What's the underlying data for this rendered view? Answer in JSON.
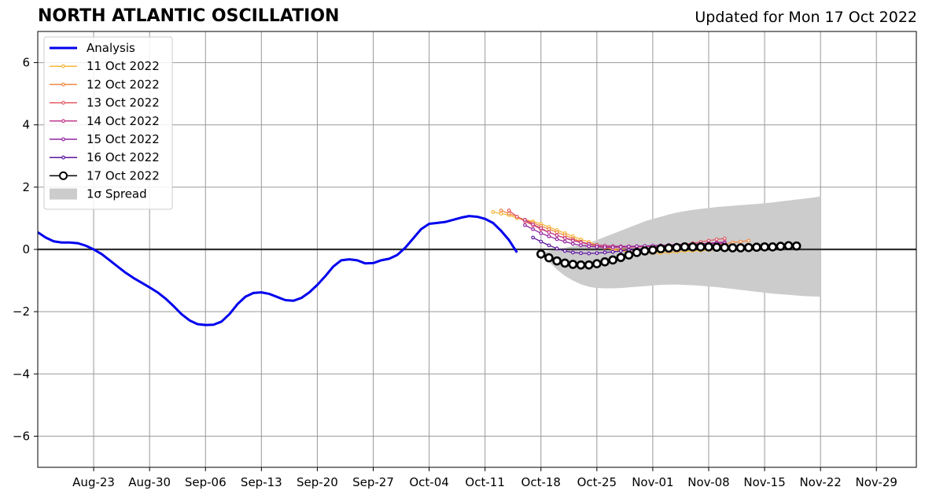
{
  "header": {
    "title": "NORTH ATLANTIC OSCILLATION",
    "updated": "Updated for Mon 17 Oct 2022"
  },
  "chart_data": {
    "type": "line",
    "x_axis": {
      "type": "date",
      "range": [
        "2022-08-16",
        "2022-12-04"
      ],
      "tick_dates": [
        "2022-08-23",
        "2022-08-30",
        "2022-09-06",
        "2022-09-13",
        "2022-09-20",
        "2022-09-27",
        "2022-10-04",
        "2022-10-11",
        "2022-10-18",
        "2022-10-25",
        "2022-11-01",
        "2022-11-08",
        "2022-11-15",
        "2022-11-22",
        "2022-11-29"
      ],
      "tick_labels": [
        "Aug-23",
        "Aug-30",
        "Sep-06",
        "Sep-13",
        "Sep-20",
        "Sep-27",
        "Oct-04",
        "Oct-11",
        "Oct-18",
        "Oct-25",
        "Nov-01",
        "Nov-08",
        "Nov-15",
        "Nov-22",
        "Nov-29"
      ]
    },
    "y_axis": {
      "range": [
        -7,
        7
      ],
      "ticks": [
        6,
        4,
        2,
        0,
        -2,
        -4,
        -6
      ],
      "tick_labels": [
        "6",
        "4",
        "2",
        "0",
        "−2",
        "−4",
        "−6"
      ]
    },
    "grid": true,
    "legend": {
      "placement": "upper-left",
      "entries": [
        "Analysis",
        "11 Oct 2022",
        "12 Oct 2022",
        "13 Oct 2022",
        "14 Oct 2022",
        "15 Oct 2022",
        "16 Oct 2022",
        "17 Oct 2022",
        "1σ Spread"
      ]
    },
    "analysis": {
      "name": "Analysis",
      "color": "#0000ee",
      "start_date": "2022-08-16",
      "values": [
        0.55,
        0.38,
        0.26,
        0.22,
        0.22,
        0.2,
        0.12,
        0.0,
        -0.15,
        -0.35,
        -0.55,
        -0.75,
        -0.92,
        -1.07,
        -1.22,
        -1.38,
        -1.58,
        -1.82,
        -2.08,
        -2.28,
        -2.4,
        -2.43,
        -2.42,
        -2.32,
        -2.08,
        -1.76,
        -1.52,
        -1.4,
        -1.38,
        -1.43,
        -1.53,
        -1.63,
        -1.65,
        -1.56,
        -1.38,
        -1.14,
        -0.86,
        -0.55,
        -0.35,
        -0.32,
        -0.35,
        -0.45,
        -0.44,
        -0.35,
        -0.3,
        -0.18,
        0.05,
        0.35,
        0.65,
        0.82,
        0.85,
        0.88,
        0.95,
        1.02,
        1.07,
        1.05,
        0.98,
        0.85,
        0.6,
        0.3,
        -0.1
      ]
    },
    "forecasts": [
      {
        "name": "11 Oct 2022",
        "color": "#f6b73c",
        "start_date": "2022-10-12",
        "values": [
          1.2,
          1.15,
          1.1,
          1.0,
          0.95,
          0.9,
          0.82,
          0.72,
          0.62,
          0.52,
          0.42,
          0.32,
          0.24,
          0.15,
          0.07,
          0.0,
          -0.05,
          -0.08,
          -0.1,
          -0.1,
          -0.12,
          -0.12,
          -0.1,
          -0.08,
          -0.06,
          -0.05,
          -0.04,
          -0.02,
          0.0,
          0.02,
          0.05,
          0.08,
          0.12
        ]
      },
      {
        "name": "12 Oct 2022",
        "color": "#f08845",
        "start_date": "2022-10-13",
        "values": [
          1.25,
          1.15,
          1.05,
          0.95,
          0.85,
          0.75,
          0.65,
          0.55,
          0.45,
          0.35,
          0.25,
          0.17,
          0.1,
          0.05,
          0.02,
          0.0,
          -0.02,
          -0.03,
          -0.03,
          -0.02,
          0.0,
          0.02,
          0.04,
          0.06,
          0.08,
          0.1,
          0.12,
          0.15,
          0.18,
          0.22,
          0.25,
          0.28
        ]
      },
      {
        "name": "13 Oct 2022",
        "color": "#e15a64",
        "start_date": "2022-10-14",
        "values": [
          1.25,
          1.05,
          0.9,
          0.78,
          0.65,
          0.55,
          0.45,
          0.37,
          0.3,
          0.24,
          0.18,
          0.13,
          0.1,
          0.08,
          0.07,
          0.07,
          0.08,
          0.09,
          0.1,
          0.11,
          0.12,
          0.14,
          0.16,
          0.2,
          0.24,
          0.28,
          0.32,
          0.35
        ]
      },
      {
        "name": "14 Oct 2022",
        "color": "#c03c8c",
        "start_date": "2022-10-16",
        "values": [
          0.95,
          0.8,
          0.68,
          0.55,
          0.45,
          0.36,
          0.28,
          0.22,
          0.17,
          0.14,
          0.12,
          0.11,
          0.1,
          0.1,
          0.1,
          0.1,
          0.1,
          0.1,
          0.1,
          0.12,
          0.14,
          0.16,
          0.18,
          0.2,
          0.22,
          0.24
        ]
      },
      {
        "name": "15 Oct 2022",
        "color": "#9425a0",
        "start_date": "2022-10-16",
        "values": [
          0.78,
          0.65,
          0.52,
          0.42,
          0.33,
          0.25,
          0.18,
          0.13,
          0.1,
          0.08,
          0.07,
          0.07,
          0.08,
          0.09,
          0.1,
          0.11,
          0.12,
          0.13,
          0.14,
          0.15,
          0.16,
          0.17,
          0.18,
          0.19,
          0.2,
          0.2
        ]
      },
      {
        "name": "16 Oct 2022",
        "color": "#5c16a0",
        "start_date": "2022-10-17",
        "values": [
          0.38,
          0.25,
          0.13,
          0.03,
          -0.05,
          -0.1,
          -0.12,
          -0.13,
          -0.12,
          -0.1,
          -0.08,
          -0.05,
          -0.02,
          0.0,
          0.02,
          0.03,
          0.04,
          0.05,
          0.06,
          0.06,
          0.07,
          0.07,
          0.08,
          0.08
        ]
      },
      {
        "name": "17 Oct 2022",
        "color": "#000000",
        "start_date": "2022-10-18",
        "values": [
          -0.15,
          -0.27,
          -0.37,
          -0.44,
          -0.48,
          -0.5,
          -0.5,
          -0.46,
          -0.4,
          -0.34,
          -0.26,
          -0.18,
          -0.1,
          -0.05,
          -0.02,
          0.02,
          0.04,
          0.06,
          0.08,
          0.08,
          0.08,
          0.08,
          0.07,
          0.06,
          0.05,
          0.05,
          0.06,
          0.07,
          0.08,
          0.08,
          0.1,
          0.12,
          0.11
        ]
      }
    ],
    "spread": {
      "name": "1σ Spread",
      "color": "#cccccc",
      "start_date": "2022-10-18",
      "upper": [
        -0.1,
        -0.05,
        0.0,
        0.05,
        0.1,
        0.15,
        0.2,
        0.3,
        0.4,
        0.5,
        0.6,
        0.7,
        0.8,
        0.9,
        0.98,
        1.05,
        1.12,
        1.18,
        1.23,
        1.27,
        1.3,
        1.33,
        1.36,
        1.38,
        1.4,
        1.42,
        1.44,
        1.46,
        1.48,
        1.51,
        1.54,
        1.57,
        1.6,
        1.63,
        1.66,
        1.7
      ],
      "lower": [
        -0.1,
        -0.4,
        -0.65,
        -0.85,
        -1.0,
        -1.12,
        -1.2,
        -1.24,
        -1.25,
        -1.25,
        -1.24,
        -1.22,
        -1.2,
        -1.18,
        -1.16,
        -1.14,
        -1.13,
        -1.13,
        -1.14,
        -1.15,
        -1.17,
        -1.19,
        -1.21,
        -1.24,
        -1.27,
        -1.3,
        -1.33,
        -1.36,
        -1.39,
        -1.42,
        -1.44,
        -1.46,
        -1.48,
        -1.5,
        -1.51,
        -1.52
      ]
    }
  }
}
